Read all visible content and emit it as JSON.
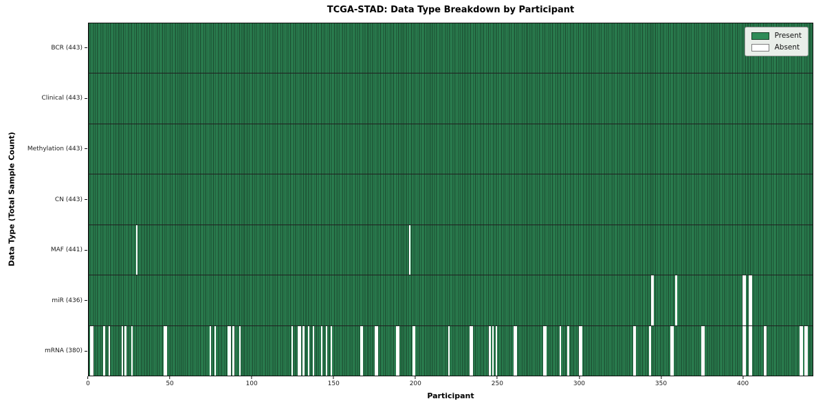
{
  "title": "TCGA-STAD: Data Type Breakdown by Participant",
  "xlabel": "Participant",
  "ylabel": "Data Type (Total Sample Count)",
  "legend": {
    "present_label": "Present",
    "absent_label": "Absent"
  },
  "colors": {
    "present": "#2e8b57",
    "present_edge": "#173d27",
    "absent": "#ffffff",
    "divider": "#1f1f1f",
    "legend_bg": "#e9eee9",
    "legend_border": "#9a9a9a"
  },
  "chart_data": {
    "type": "heatmap",
    "title": "TCGA-STAD: Data Type Breakdown by Participant",
    "xlabel": "Participant",
    "ylabel": "Data Type (Total Sample Count)",
    "legend_entries": [
      "Present",
      "Absent"
    ],
    "legend_position": "upper right",
    "n_participants": 443,
    "x_range": [
      0,
      443
    ],
    "x_ticks": [
      0,
      50,
      100,
      150,
      200,
      250,
      300,
      350,
      400
    ],
    "cell_states": {
      "present": 1,
      "absent": 0
    },
    "rows": [
      {
        "name": "BCR",
        "label": "BCR (443)",
        "present_count": 443,
        "absent_indices": []
      },
      {
        "name": "Clinical",
        "label": "Clinical (443)",
        "present_count": 443,
        "absent_indices": []
      },
      {
        "name": "Methylation",
        "label": "Methylation (443)",
        "present_count": 443,
        "absent_indices": []
      },
      {
        "name": "CN",
        "label": "CN (443)",
        "present_count": 443,
        "absent_indices": []
      },
      {
        "name": "MAF",
        "label": "MAF (441)",
        "present_count": 441,
        "absent_indices": [
          29,
          196
        ]
      },
      {
        "name": "miR",
        "label": "miR (436)",
        "present_count": 436,
        "absent_indices": [
          344,
          345,
          359,
          400,
          401,
          404,
          405
        ]
      },
      {
        "name": "mRNA",
        "label": "mRNA (380)",
        "present_count": 380,
        "absent_indices": [
          1,
          2,
          9,
          12,
          20,
          22,
          26,
          46,
          47,
          74,
          77,
          85,
          86,
          88,
          92,
          124,
          128,
          129,
          131,
          134,
          137,
          142,
          145,
          148,
          166,
          167,
          175,
          176,
          188,
          189,
          198,
          199,
          220,
          233,
          234,
          245,
          247,
          249,
          260,
          261,
          278,
          279,
          288,
          293,
          300,
          301,
          333,
          334,
          343,
          356,
          357,
          375,
          376,
          400,
          401,
          404,
          405,
          413,
          414,
          435,
          436,
          438,
          439
        ]
      }
    ]
  }
}
